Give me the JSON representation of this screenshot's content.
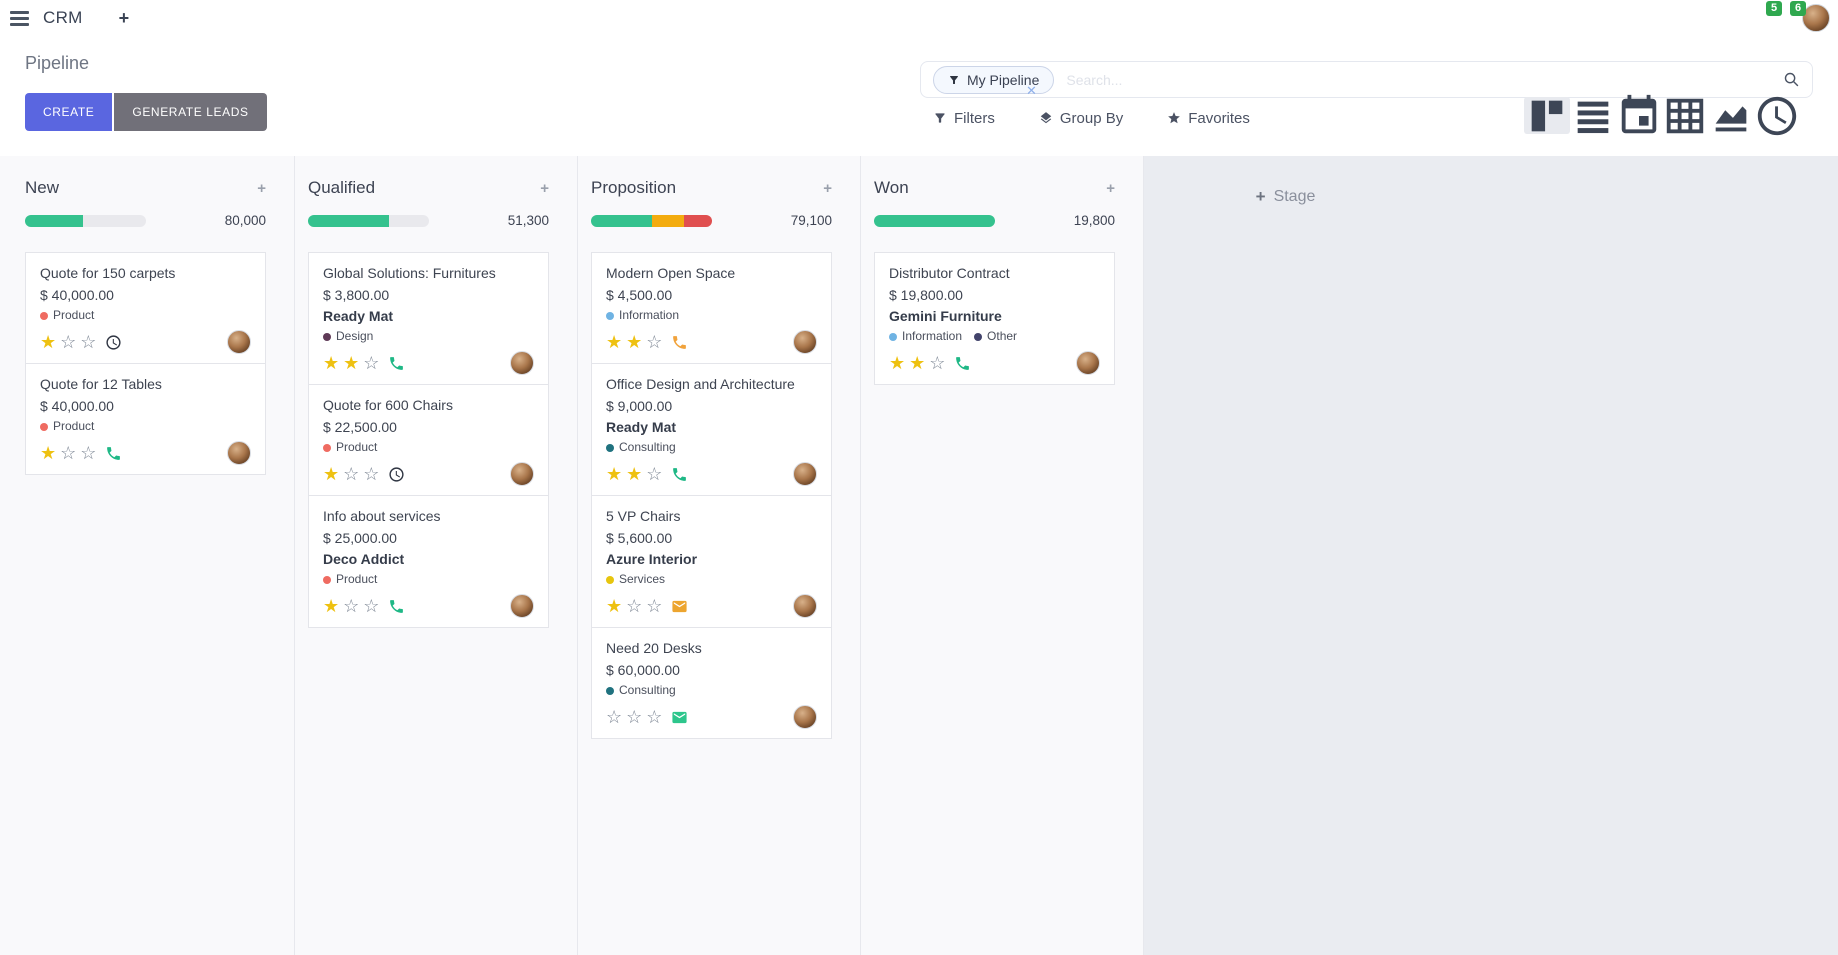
{
  "navbar": {
    "app_name": "CRM",
    "messages_badge": "5",
    "activities_badge": "6"
  },
  "control_panel": {
    "title": "Pipeline",
    "buttons": {
      "create": "CREATE",
      "generate_leads": "GENERATE LEADS"
    },
    "search": {
      "facet": "My Pipeline",
      "placeholder": "Search...",
      "remove_glyph": "✕"
    },
    "filter_menus": {
      "filters": "Filters",
      "group_by": "Group By",
      "favorites": "Favorites"
    }
  },
  "kanban": {
    "add_stage_label": "Stage",
    "columns": [
      {
        "name": "New",
        "total": "80,000",
        "progress": [
          {
            "color": "green",
            "pct": 48
          }
        ],
        "cards": [
          {
            "title": "Quote for 150 carpets",
            "amount": "$ 40,000.00",
            "partner": null,
            "tags": [
              {
                "label": "Product",
                "color": "red"
              }
            ],
            "stars": 1,
            "activity": {
              "icon": "clock",
              "color": "dark"
            }
          },
          {
            "title": "Quote for 12 Tables",
            "amount": "$ 40,000.00",
            "partner": null,
            "tags": [
              {
                "label": "Product",
                "color": "red"
              }
            ],
            "stars": 1,
            "activity": {
              "icon": "phone",
              "color": "green"
            }
          }
        ]
      },
      {
        "name": "Qualified",
        "total": "51,300",
        "progress": [
          {
            "color": "green",
            "pct": 67
          }
        ],
        "cards": [
          {
            "title": "Global Solutions: Furnitures",
            "amount": "$ 3,800.00",
            "partner": "Ready Mat",
            "tags": [
              {
                "label": "Design",
                "color": "maroon"
              }
            ],
            "stars": 2,
            "activity": {
              "icon": "phone",
              "color": "green"
            }
          },
          {
            "title": "Quote for 600 Chairs",
            "amount": "$ 22,500.00",
            "partner": null,
            "tags": [
              {
                "label": "Product",
                "color": "red"
              }
            ],
            "stars": 1,
            "activity": {
              "icon": "clock",
              "color": "dark"
            }
          },
          {
            "title": "Info about services",
            "amount": "$ 25,000.00",
            "partner": "Deco Addict",
            "tags": [
              {
                "label": "Product",
                "color": "red"
              }
            ],
            "stars": 1,
            "activity": {
              "icon": "phone",
              "color": "green"
            }
          }
        ]
      },
      {
        "name": "Proposition",
        "total": "79,100",
        "progress": [
          {
            "color": "green",
            "pct": 50
          },
          {
            "color": "orange",
            "pct": 27
          },
          {
            "color": "red",
            "pct": 23
          }
        ],
        "cards": [
          {
            "title": "Modern Open Space",
            "amount": "$ 4,500.00",
            "partner": null,
            "tags": [
              {
                "label": "Information",
                "color": "lightblue"
              }
            ],
            "stars": 2,
            "activity": {
              "icon": "phone",
              "color": "orange"
            }
          },
          {
            "title": "Office Design and Architecture",
            "amount": "$ 9,000.00",
            "partner": "Ready Mat",
            "tags": [
              {
                "label": "Consulting",
                "color": "teal"
              }
            ],
            "stars": 2,
            "activity": {
              "icon": "phone",
              "color": "green"
            }
          },
          {
            "title": "5 VP Chairs",
            "amount": "$ 5,600.00",
            "partner": "Azure Interior",
            "tags": [
              {
                "label": "Services",
                "color": "yellow"
              }
            ],
            "stars": 1,
            "activity": {
              "icon": "envelope",
              "color": "env_orange"
            }
          },
          {
            "title": "Need 20 Desks",
            "amount": "$ 60,000.00",
            "partner": null,
            "tags": [
              {
                "label": "Consulting",
                "color": "teal"
              }
            ],
            "stars": 0,
            "activity": {
              "icon": "envelope",
              "color": "env_green"
            }
          }
        ]
      },
      {
        "name": "Won",
        "total": "19,800",
        "progress": [
          {
            "color": "green",
            "pct": 100
          }
        ],
        "cards": [
          {
            "title": "Distributor Contract",
            "amount": "$ 19,800.00",
            "partner": "Gemini Furniture",
            "tags": [
              {
                "label": "Information",
                "color": "lightblue"
              },
              {
                "label": "Other",
                "color": "navy"
              }
            ],
            "stars": 2,
            "activity": {
              "icon": "phone",
              "color": "green"
            }
          }
        ]
      }
    ]
  },
  "colors": {
    "accent": "#5a66e0",
    "badge_green": "#2fa84f",
    "star_filled": "#eec111",
    "progress": {
      "green": "#35c28e",
      "orange": "#f3ac0f",
      "red": "#e04f4f"
    },
    "tags": {
      "red": "#ef6b61",
      "maroon": "#5f3a57",
      "lightblue": "#6fb3e3",
      "teal": "#20727f",
      "yellow": "#e7c50e",
      "navy": "#42436b"
    },
    "activity": {
      "dark": "#2f3542",
      "green": "#1fb886",
      "orange": "#f1a33c",
      "env_orange": "#eda52f",
      "env_green": "#2dc68c"
    }
  }
}
